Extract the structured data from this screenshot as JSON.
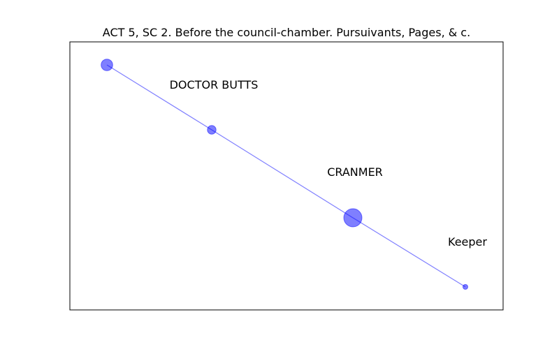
{
  "title": "ACT 5, SC 2. Before the council-chamber. Pursuivants, Pages,  & c.",
  "colors": {
    "node": "#0000ff",
    "edge": "#0000ff",
    "frame": "#000000",
    "text": "#000000"
  },
  "chart_data": {
    "type": "network",
    "title": "ACT 5, SC 2. Before the council-chamber. Pursuivants, Pages,  & c.",
    "grid": false,
    "axes_ticks": false,
    "nodes": [
      {
        "id": "n1",
        "label": "",
        "weight": 0.55
      },
      {
        "id": "n2",
        "label": "DOCTOR BUTTS",
        "weight": 0.35
      },
      {
        "id": "n3",
        "label": "CRANMER",
        "weight": 1.0
      },
      {
        "id": "n4",
        "label": "Keeper",
        "weight": 0.1
      }
    ],
    "edges": [
      [
        "n1",
        "n2"
      ],
      [
        "n2",
        "n3"
      ],
      [
        "n3",
        "n4"
      ]
    ]
  }
}
